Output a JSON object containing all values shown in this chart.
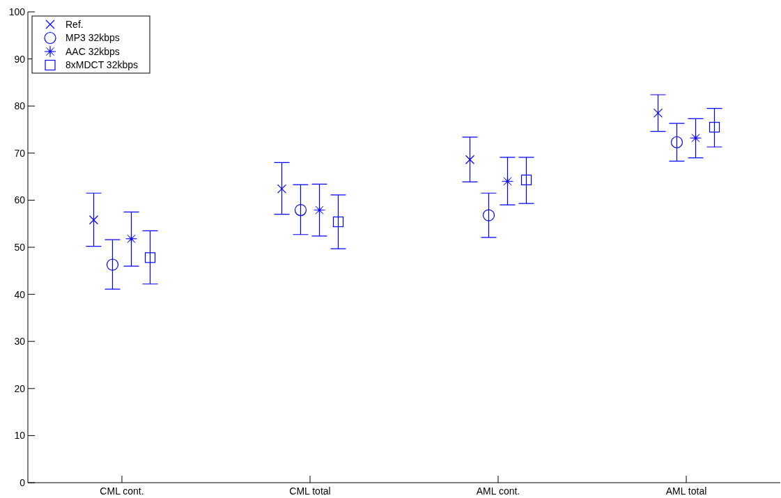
{
  "chart_data": {
    "type": "scatter",
    "categories": [
      "CML cont.",
      "CML total",
      "AML cont.",
      "AML total"
    ],
    "ylim": [
      0,
      100
    ],
    "yticks": [
      0,
      10,
      20,
      30,
      40,
      50,
      60,
      70,
      80,
      90,
      100
    ],
    "grid": false,
    "legend": "top left",
    "series": [
      {
        "name": "Ref.",
        "color": "#0000ff",
        "marker": "cross",
        "values": [
          55.8,
          62.4,
          68.6,
          78.5
        ],
        "errors": [
          [
            50.2,
            61.5
          ],
          [
            57.0,
            68.0
          ],
          [
            63.9,
            73.4
          ],
          [
            74.6,
            82.4
          ]
        ]
      },
      {
        "name": "MP3 32kbps",
        "color": "#0000ff",
        "marker": "circle",
        "values": [
          46.3,
          57.9,
          56.8,
          72.3
        ],
        "errors": [
          [
            41.1,
            51.6
          ],
          [
            52.7,
            63.3
          ],
          [
            52.1,
            61.5
          ],
          [
            68.3,
            76.3
          ]
        ]
      },
      {
        "name": "AAC 32kbps",
        "color": "#0000ff",
        "marker": "star",
        "values": [
          51.8,
          57.9,
          64.0,
          73.2
        ],
        "errors": [
          [
            46.0,
            57.5
          ],
          [
            52.4,
            63.4
          ],
          [
            59.0,
            69.1
          ],
          [
            69.0,
            77.3
          ]
        ]
      },
      {
        "name": "8xMDCT 32kbps",
        "color": "#0000ff",
        "marker": "square",
        "values": [
          47.8,
          55.4,
          64.3,
          75.5
        ],
        "errors": [
          [
            42.2,
            53.5
          ],
          [
            49.7,
            61.1
          ],
          [
            59.3,
            69.1
          ],
          [
            71.3,
            79.5
          ]
        ]
      }
    ]
  }
}
